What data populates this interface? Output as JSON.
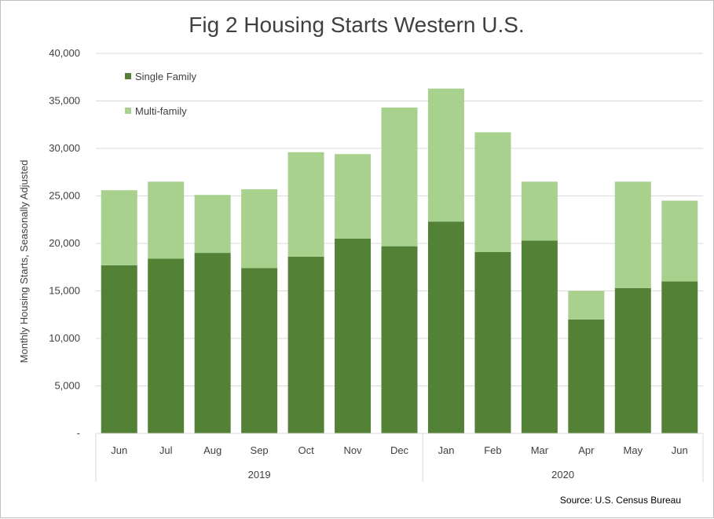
{
  "chart_data": {
    "type": "bar",
    "stacked": true,
    "title": "Fig 2 Housing Starts Western U.S.",
    "ylabel": "Monthly Housing Starts, Seasonally Adjusted",
    "xlabel": "",
    "ylim": [
      0,
      40000
    ],
    "yticks": [
      0,
      5000,
      10000,
      15000,
      20000,
      25000,
      30000,
      35000,
      40000
    ],
    "ytick_labels": [
      "-",
      "5,000",
      "10,000",
      "15,000",
      "20,000",
      "25,000",
      "30,000",
      "35,000",
      "40,000"
    ],
    "grid": true,
    "legend_position": "top-left",
    "categories": [
      "Jun",
      "Jul",
      "Aug",
      "Sep",
      "Oct",
      "Nov",
      "Dec",
      "Jan",
      "Feb",
      "Mar",
      "Apr",
      "May",
      "Jun"
    ],
    "groups": [
      {
        "label": "2019",
        "count": 7
      },
      {
        "label": "2020",
        "count": 6
      }
    ],
    "series": [
      {
        "name": "Single Family",
        "color": "#538135",
        "values": [
          17700,
          18400,
          19000,
          17400,
          18600,
          20500,
          19700,
          22300,
          19100,
          20300,
          12000,
          15300,
          16000
        ]
      },
      {
        "name": "Multi-family",
        "color": "#a9d18e",
        "values": [
          7900,
          8100,
          6100,
          8300,
          11000,
          8900,
          14600,
          14000,
          12600,
          6200,
          3000,
          11200,
          8500
        ]
      }
    ]
  },
  "source": "Source: U.S. Census Bureau"
}
